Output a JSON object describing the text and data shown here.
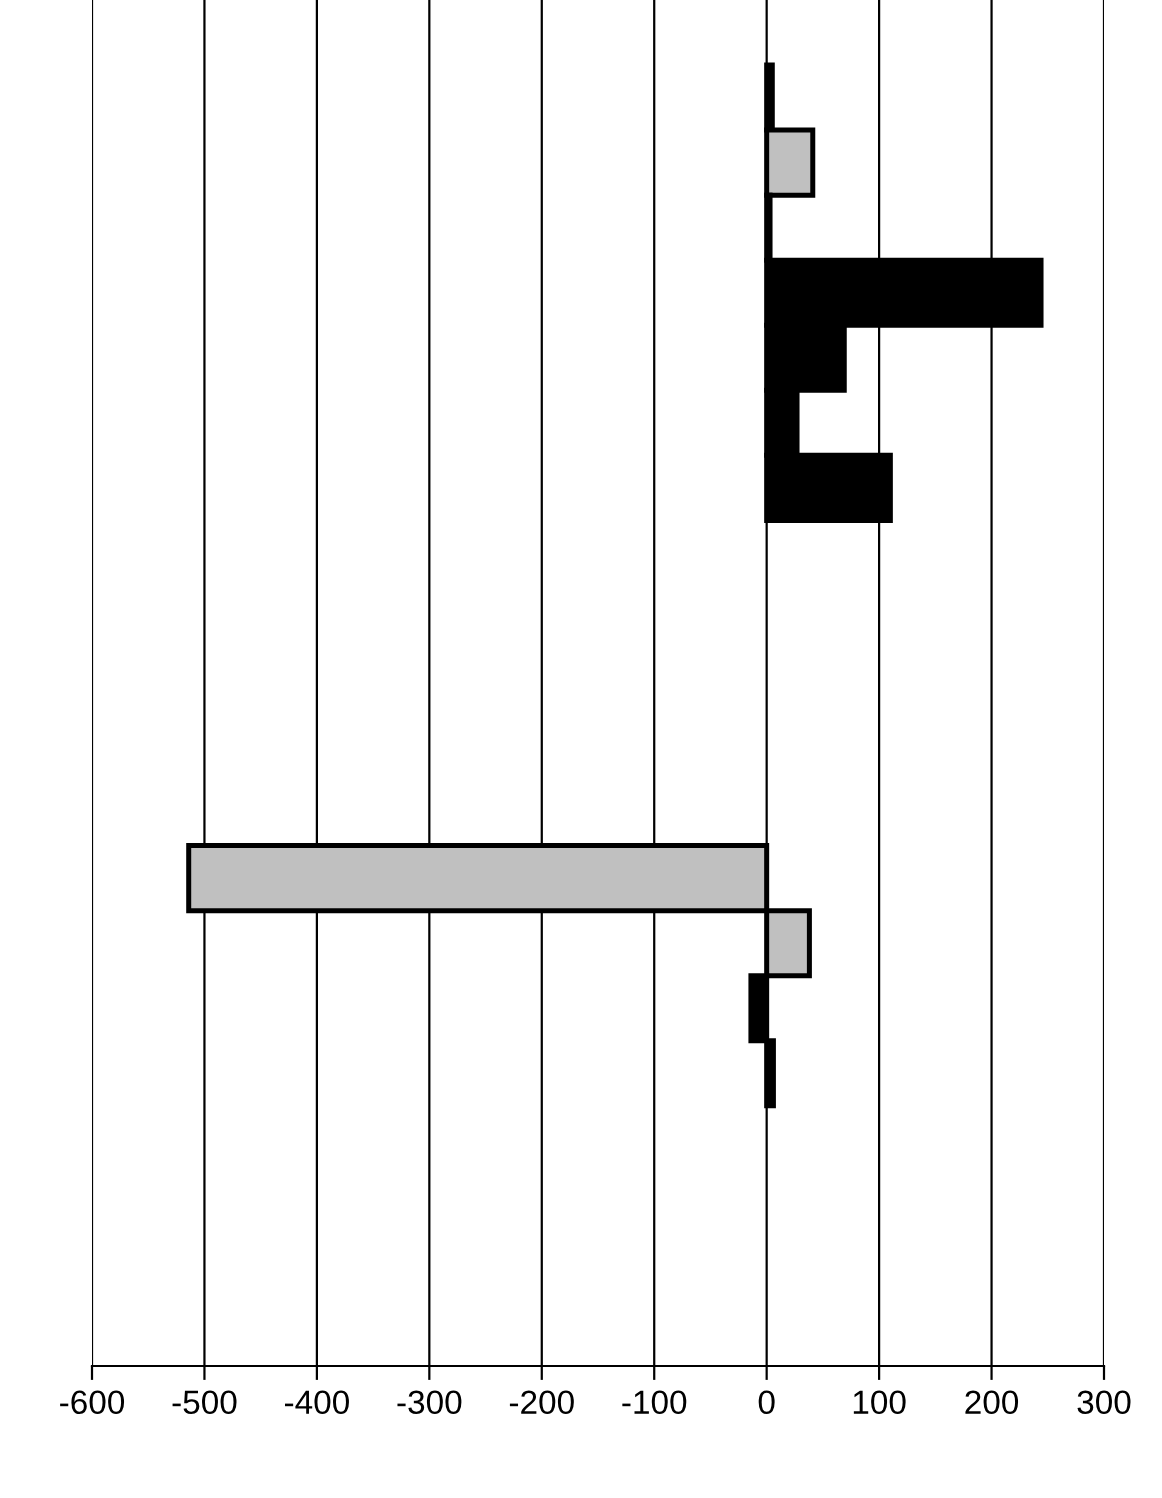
{
  "chart_data": {
    "type": "bar",
    "orientation": "horizontal",
    "categories": [
      null,
      null,
      null,
      null,
      null,
      null,
      null,
      null,
      null,
      null,
      null,
      null,
      null,
      null,
      null,
      null,
      null,
      null,
      null,
      null,
      null
    ],
    "values": [
      null,
      5,
      41,
      3,
      244,
      69,
      27,
      110,
      null,
      null,
      null,
      null,
      null,
      -514,
      38,
      -14,
      6,
      null,
      null,
      null,
      null
    ],
    "colors": [
      "#000000",
      "#000000",
      "#c0c0c0",
      "#000000",
      "#000000",
      "#000000",
      "#000000",
      "#000000",
      "#000000",
      "#000000",
      "#000000",
      "#000000",
      "#000000",
      "#c0c0c0",
      "#c0c0c0",
      "#000000",
      "#000000",
      "#000000",
      "#000000",
      "#000000",
      "#000000"
    ],
    "xlim": [
      -600,
      300
    ],
    "xticks": [
      -600,
      -500,
      -400,
      -300,
      -200,
      -100,
      0,
      100,
      200,
      300
    ],
    "grid": "x",
    "tick_labels": "x",
    "legend": false
  }
}
